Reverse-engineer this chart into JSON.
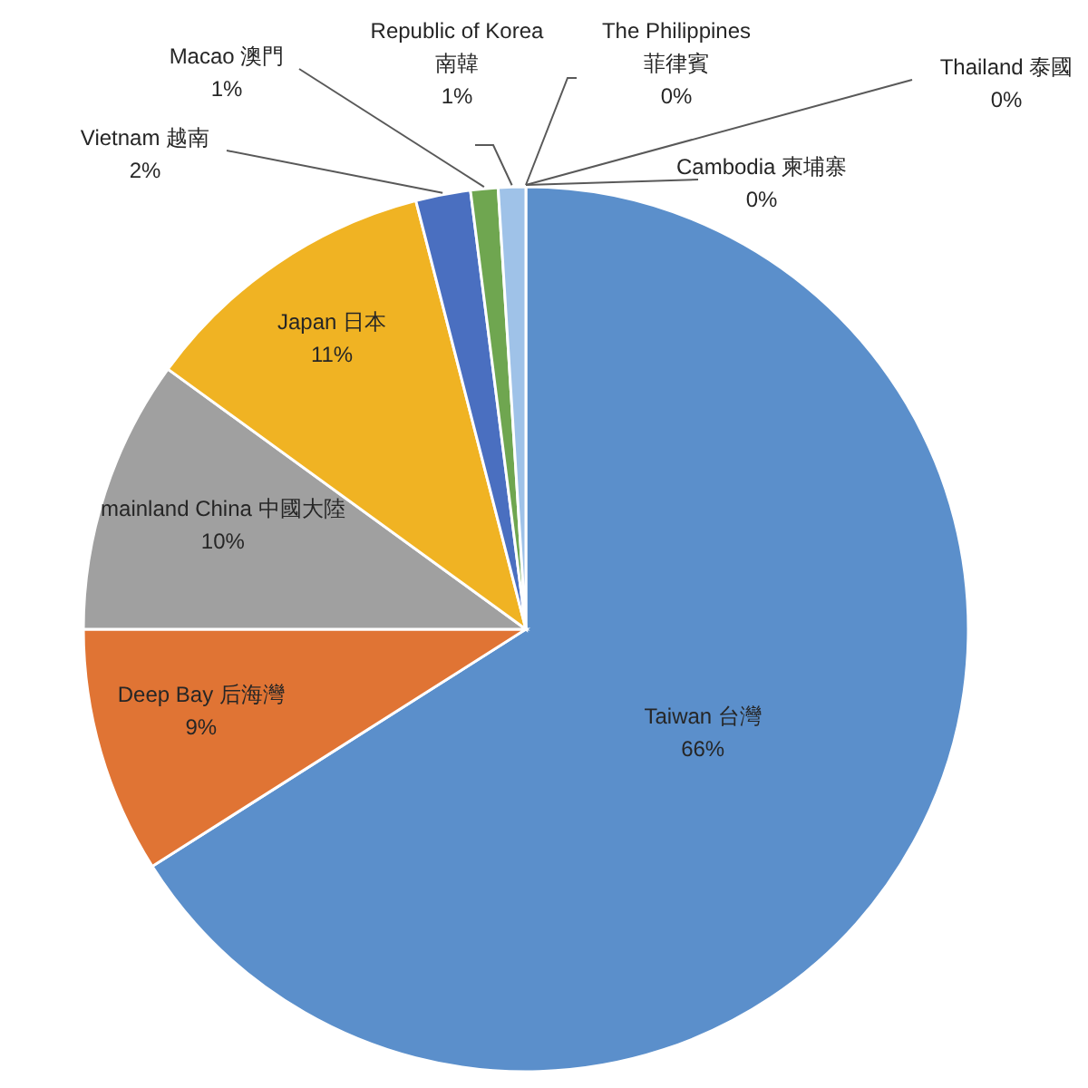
{
  "chart_data": {
    "type": "pie",
    "categories": [
      "Taiwan 台灣",
      "Deep Bay 后海灣",
      "mainland China 中國大陸",
      "Japan 日本",
      "Vietnam 越南",
      "Macao 澳門",
      "Republic of Korea 南韓",
      "The Philippines 菲律賓",
      "Thailand 泰國",
      "Cambodia 柬埔寨"
    ],
    "values": [
      66,
      9,
      10,
      11,
      2,
      1,
      1,
      0,
      0,
      0
    ],
    "colors": [
      "#5b8fcb",
      "#e07434",
      "#a0a0a0",
      "#f0b323",
      "#4a6fc0",
      "#6fa650",
      "#9fc2e8",
      null,
      null,
      null
    ],
    "value_labels": [
      "66%",
      "9%",
      "10%",
      "11%",
      "2%",
      "1%",
      "1%",
      "0%",
      "0%",
      "0%"
    ]
  }
}
